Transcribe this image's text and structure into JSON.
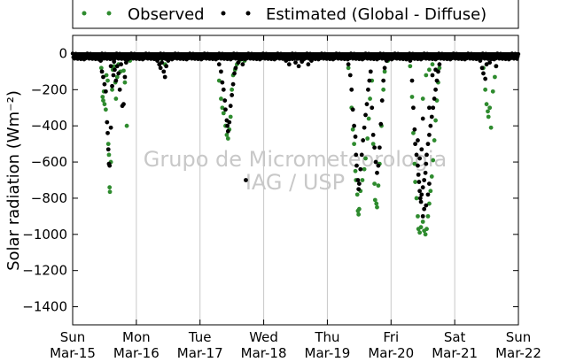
{
  "chart_data": {
    "type": "scatter",
    "ylabel": "Solar radiation (Wm⁻²)",
    "ylim": [
      -1500,
      100
    ],
    "yticks": [
      0,
      -200,
      -400,
      -600,
      -800,
      -1000,
      -1200,
      -1400
    ],
    "xlim": [
      "2015-03-15",
      "2015-03-22"
    ],
    "xtick_labels": [
      {
        "day": "Sun",
        "date": "Mar-15"
      },
      {
        "day": "Mon",
        "date": "Mar-16"
      },
      {
        "day": "Tue",
        "date": "Mar-17"
      },
      {
        "day": "Wed",
        "date": "Mar-18"
      },
      {
        "day": "Thu",
        "date": "Mar-19"
      },
      {
        "day": "Fri",
        "date": "Mar-20"
      },
      {
        "day": "Sat",
        "date": "Mar-21"
      },
      {
        "day": "Sun",
        "date": "Mar-22"
      }
    ],
    "grid": "x-only",
    "legend_position": "top-outside",
    "watermark": [
      "Grupo de Micrometeorologia",
      "IAG / USP"
    ],
    "series": [
      {
        "name": "Observed",
        "color": "#2e8b2e",
        "points": [
          [
            0.45,
            -80
          ],
          [
            0.47,
            -240
          ],
          [
            0.48,
            -260
          ],
          [
            0.49,
            -210
          ],
          [
            0.5,
            -280
          ],
          [
            0.52,
            -310
          ],
          [
            0.53,
            -120
          ],
          [
            0.55,
            -150
          ],
          [
            0.56,
            -500
          ],
          [
            0.57,
            -560
          ],
          [
            0.58,
            -740
          ],
          [
            0.585,
            -765
          ],
          [
            0.6,
            -600
          ],
          [
            0.62,
            -200
          ],
          [
            0.63,
            -90
          ],
          [
            0.65,
            -70
          ],
          [
            0.67,
            -160
          ],
          [
            0.68,
            -250
          ],
          [
            0.7,
            -130
          ],
          [
            0.72,
            -60
          ],
          [
            0.75,
            -100
          ],
          [
            0.8,
            -95
          ],
          [
            0.82,
            -160
          ],
          [
            0.85,
            -400
          ],
          [
            0.9,
            -40
          ],
          [
            1.4,
            -30
          ],
          [
            1.45,
            -60
          ],
          [
            2.3,
            -150
          ],
          [
            2.33,
            -250
          ],
          [
            2.35,
            -300
          ],
          [
            2.37,
            -330
          ],
          [
            2.4,
            -400
          ],
          [
            2.42,
            -450
          ],
          [
            2.44,
            -470
          ],
          [
            2.46,
            -420
          ],
          [
            2.48,
            -350
          ],
          [
            2.5,
            -200
          ],
          [
            2.52,
            -120
          ],
          [
            2.55,
            -90
          ],
          [
            2.58,
            -60
          ],
          [
            2.62,
            -40
          ],
          [
            2.65,
            -20
          ],
          [
            2.7,
            -40
          ],
          [
            4.33,
            -80
          ],
          [
            4.38,
            -300
          ],
          [
            4.4,
            -420
          ],
          [
            4.42,
            -500
          ],
          [
            4.44,
            -650
          ],
          [
            4.45,
            -700
          ],
          [
            4.47,
            -780
          ],
          [
            4.48,
            -870
          ],
          [
            4.49,
            -890
          ],
          [
            4.5,
            -860
          ],
          [
            4.52,
            -760
          ],
          [
            4.55,
            -700
          ],
          [
            4.58,
            -640
          ],
          [
            4.6,
            -580
          ],
          [
            4.63,
            -470
          ],
          [
            4.65,
            -360
          ],
          [
            4.67,
            -250
          ],
          [
            4.7,
            -150
          ],
          [
            4.72,
            -500
          ],
          [
            4.74,
            -720
          ],
          [
            4.75,
            -810
          ],
          [
            4.77,
            -830
          ],
          [
            4.78,
            -850
          ],
          [
            4.8,
            -730
          ],
          [
            4.82,
            -610
          ],
          [
            4.85,
            -400
          ],
          [
            4.88,
            -200
          ],
          [
            4.9,
            -100
          ],
          [
            4.95,
            -40
          ],
          [
            5.3,
            -70
          ],
          [
            5.33,
            -240
          ],
          [
            5.35,
            -440
          ],
          [
            5.37,
            -610
          ],
          [
            5.38,
            -710
          ],
          [
            5.4,
            -800
          ],
          [
            5.42,
            -900
          ],
          [
            5.43,
            -970
          ],
          [
            5.45,
            -990
          ],
          [
            5.47,
            -960
          ],
          [
            5.5,
            -930
          ],
          [
            5.52,
            -980
          ],
          [
            5.54,
            -1000
          ],
          [
            5.56,
            -970
          ],
          [
            5.58,
            -900
          ],
          [
            5.6,
            -830
          ],
          [
            5.62,
            -760
          ],
          [
            5.64,
            -680
          ],
          [
            5.66,
            -590
          ],
          [
            5.68,
            -480
          ],
          [
            5.7,
            -370
          ],
          [
            5.72,
            -260
          ],
          [
            5.74,
            -160
          ],
          [
            5.76,
            -80
          ],
          [
            5.5,
            -250
          ],
          [
            5.55,
            -120
          ],
          [
            5.6,
            -90
          ],
          [
            5.65,
            -60
          ],
          [
            5.7,
            -30
          ],
          [
            6.45,
            -80
          ],
          [
            6.48,
            -200
          ],
          [
            6.5,
            -280
          ],
          [
            6.52,
            -320
          ],
          [
            6.53,
            -350
          ],
          [
            6.55,
            -300
          ],
          [
            6.57,
            -410
          ],
          [
            6.6,
            -210
          ],
          [
            6.63,
            -130
          ],
          [
            6.65,
            -70
          ]
        ]
      },
      {
        "name": "Estimated (Global - Diffuse)",
        "color": "#000000",
        "points": [
          [
            0.44,
            -40
          ],
          [
            0.46,
            -100
          ],
          [
            0.48,
            -130
          ],
          [
            0.5,
            -170
          ],
          [
            0.52,
            -210
          ],
          [
            0.54,
            -380
          ],
          [
            0.55,
            -440
          ],
          [
            0.56,
            -530
          ],
          [
            0.57,
            -610
          ],
          [
            0.58,
            -620
          ],
          [
            0.6,
            -410
          ],
          [
            0.62,
            -180
          ],
          [
            0.64,
            -120
          ],
          [
            0.66,
            -90
          ],
          [
            0.68,
            -150
          ],
          [
            0.7,
            -70
          ],
          [
            0.72,
            -110
          ],
          [
            0.74,
            -200
          ],
          [
            0.76,
            -60
          ],
          [
            0.78,
            -290
          ],
          [
            0.8,
            -280
          ],
          [
            0.82,
            -130
          ],
          [
            0.84,
            -50
          ],
          [
            0.6,
            -70
          ],
          [
            0.65,
            -45
          ],
          [
            1.3,
            -20
          ],
          [
            1.33,
            -40
          ],
          [
            1.36,
            -60
          ],
          [
            1.38,
            -80
          ],
          [
            1.4,
            -50
          ],
          [
            1.43,
            -100
          ],
          [
            1.45,
            -130
          ],
          [
            1.47,
            -70
          ],
          [
            1.5,
            -40
          ],
          [
            1.55,
            -20
          ],
          [
            2.3,
            -60
          ],
          [
            2.33,
            -100
          ],
          [
            2.35,
            -160
          ],
          [
            2.37,
            -200
          ],
          [
            2.39,
            -260
          ],
          [
            2.4,
            -310
          ],
          [
            2.42,
            -370
          ],
          [
            2.43,
            -400
          ],
          [
            2.44,
            -430
          ],
          [
            2.46,
            -380
          ],
          [
            2.48,
            -290
          ],
          [
            2.5,
            -230
          ],
          [
            2.52,
            -170
          ],
          [
            2.54,
            -110
          ],
          [
            2.56,
            -80
          ],
          [
            2.6,
            -50
          ],
          [
            2.63,
            -30
          ],
          [
            2.67,
            -60
          ],
          [
            2.72,
            -700
          ],
          [
            2.75,
            -20
          ],
          [
            3.3,
            -20
          ],
          [
            3.35,
            -40
          ],
          [
            3.4,
            -60
          ],
          [
            3.45,
            -30
          ],
          [
            3.5,
            -50
          ],
          [
            3.55,
            -70
          ],
          [
            3.6,
            -45
          ],
          [
            3.65,
            -25
          ],
          [
            3.7,
            -60
          ],
          [
            3.75,
            -40
          ],
          [
            3.8,
            -20
          ],
          [
            4.33,
            -60
          ],
          [
            4.36,
            -120
          ],
          [
            4.38,
            -200
          ],
          [
            4.4,
            -310
          ],
          [
            4.42,
            -400
          ],
          [
            4.44,
            -460
          ],
          [
            4.45,
            -560
          ],
          [
            4.46,
            -620
          ],
          [
            4.48,
            -700
          ],
          [
            4.49,
            -750
          ],
          [
            4.5,
            -720
          ],
          [
            4.52,
            -640
          ],
          [
            4.54,
            -560
          ],
          [
            4.56,
            -480
          ],
          [
            4.58,
            -410
          ],
          [
            4.6,
            -340
          ],
          [
            4.62,
            -280
          ],
          [
            4.64,
            -200
          ],
          [
            4.66,
            -150
          ],
          [
            4.68,
            -100
          ],
          [
            4.7,
            -300
          ],
          [
            4.72,
            -450
          ],
          [
            4.74,
            -520
          ],
          [
            4.76,
            -600
          ],
          [
            4.78,
            -660
          ],
          [
            4.8,
            -620
          ],
          [
            4.82,
            -520
          ],
          [
            4.84,
            -390
          ],
          [
            4.86,
            -260
          ],
          [
            4.88,
            -150
          ],
          [
            4.9,
            -80
          ],
          [
            4.93,
            -40
          ],
          [
            5.3,
            -40
          ],
          [
            5.33,
            -150
          ],
          [
            5.35,
            -300
          ],
          [
            5.37,
            -420
          ],
          [
            5.38,
            -500
          ],
          [
            5.4,
            -560
          ],
          [
            5.42,
            -620
          ],
          [
            5.43,
            -670
          ],
          [
            5.44,
            -710
          ],
          [
            5.45,
            -760
          ],
          [
            5.46,
            -800
          ],
          [
            5.47,
            -820
          ],
          [
            5.48,
            -780
          ],
          [
            5.5,
            -740
          ],
          [
            5.52,
            -700
          ],
          [
            5.54,
            -660
          ],
          [
            5.55,
            -610
          ],
          [
            5.56,
            -560
          ],
          [
            5.58,
            -500
          ],
          [
            5.6,
            -450
          ],
          [
            5.62,
            -400
          ],
          [
            5.64,
            -350
          ],
          [
            5.66,
            -300
          ],
          [
            5.68,
            -250
          ],
          [
            5.7,
            -200
          ],
          [
            5.72,
            -150
          ],
          [
            5.74,
            -100
          ],
          [
            5.76,
            -60
          ],
          [
            5.5,
            -900
          ],
          [
            5.52,
            -860
          ],
          [
            5.55,
            -840
          ],
          [
            5.58,
            -780
          ],
          [
            5.6,
            -720
          ],
          [
            5.45,
            -580
          ],
          [
            5.48,
            -530
          ],
          [
            5.42,
            -480
          ],
          [
            5.5,
            -360
          ],
          [
            5.6,
            -300
          ],
          [
            5.65,
            -120
          ],
          [
            5.7,
            -90
          ],
          [
            6.4,
            -40
          ],
          [
            6.43,
            -80
          ],
          [
            6.45,
            -110
          ],
          [
            6.48,
            -140
          ],
          [
            6.5,
            -60
          ],
          [
            6.52,
            -20
          ],
          [
            6.55,
            -50
          ],
          [
            6.6,
            -30
          ],
          [
            6.65,
            -70
          ],
          [
            6.7,
            -20
          ]
        ]
      }
    ]
  }
}
